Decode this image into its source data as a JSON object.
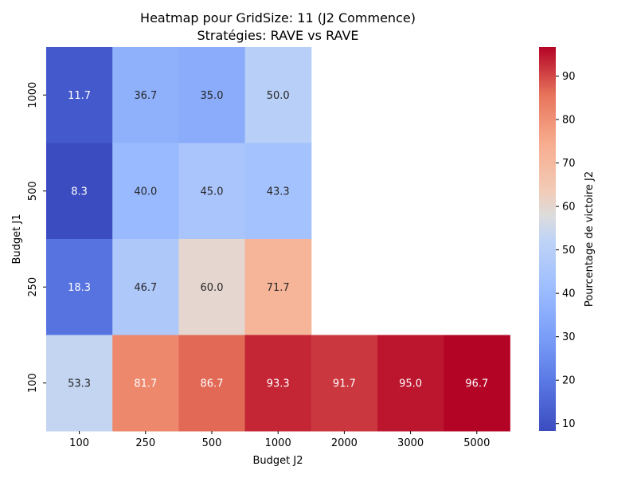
{
  "chart_data": {
    "type": "heatmap",
    "title": "Heatmap pour GridSize: 11 (J2 Commence)",
    "subtitle": "Stratégies: RAVE vs RAVE",
    "xlabel": "Budget J2",
    "ylabel": "Budget J1",
    "x_categories": [
      "100",
      "250",
      "500",
      "1000",
      "2000",
      "3000",
      "5000"
    ],
    "y_categories": [
      "1000",
      "500",
      "250",
      "100"
    ],
    "values": [
      [
        11.7,
        36.7,
        35.0,
        50.0,
        null,
        null,
        null
      ],
      [
        8.3,
        40.0,
        45.0,
        43.3,
        null,
        null,
        null
      ],
      [
        18.3,
        46.7,
        60.0,
        71.7,
        null,
        null,
        null
      ],
      [
        53.3,
        81.7,
        86.7,
        93.3,
        91.7,
        95.0,
        96.7
      ]
    ],
    "colorbar": {
      "label": "Pourcentage de victoire J2",
      "colormap": "coolwarm",
      "vmin": 8.3,
      "vmax": 96.7,
      "ticks": [
        "10",
        "20",
        "30",
        "40",
        "50",
        "60",
        "70",
        "80",
        "90"
      ]
    }
  }
}
